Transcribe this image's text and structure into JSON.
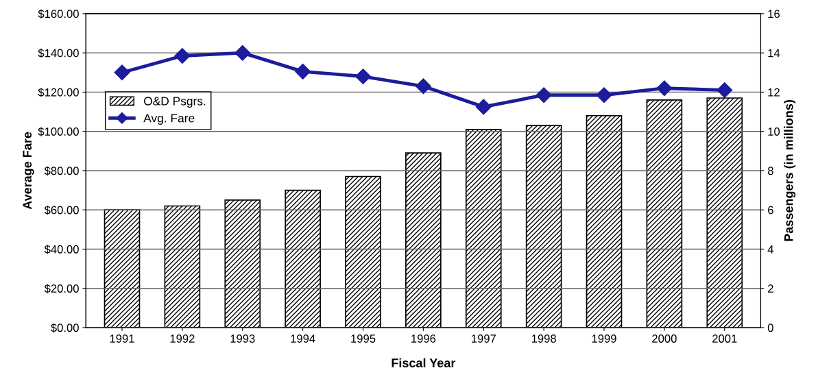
{
  "chart_data": {
    "type": "bar",
    "xlabel": "Fiscal Year",
    "ylabel": "Average Fare",
    "y2label": "Passengers (in millions)",
    "categories": [
      "1991",
      "1992",
      "1993",
      "1994",
      "1995",
      "1996",
      "1997",
      "1998",
      "1999",
      "2000",
      "2001"
    ],
    "series": [
      {
        "name": "O&D Psgrs.",
        "axis": "y2",
        "color": "#000000",
        "values": [
          6.0,
          6.2,
          6.5,
          7.0,
          7.7,
          8.9,
          10.1,
          10.3,
          10.8,
          11.6,
          11.7
        ]
      },
      {
        "name": "Avg. Fare",
        "type": "line",
        "axis": "y",
        "color": "#1c1c9c",
        "marker": "diamond",
        "values": [
          130,
          138.5,
          140,
          130.5,
          128,
          123,
          112.5,
          118.5,
          118.5,
          122,
          121
        ]
      }
    ],
    "ylim": [
      0,
      160
    ],
    "yticks": [
      {
        "value": 0,
        "label": "$0.00"
      },
      {
        "value": 20,
        "label": "$20.00"
      },
      {
        "value": 40,
        "label": "$40.00"
      },
      {
        "value": 60,
        "label": "$60.00"
      },
      {
        "value": 80,
        "label": "$80.00"
      },
      {
        "value": 100,
        "label": "$100.00"
      },
      {
        "value": 120,
        "label": "$120.00"
      },
      {
        "value": 140,
        "label": "$140.00"
      },
      {
        "value": 160,
        "label": "$160.00"
      }
    ],
    "y2lim": [
      0,
      16
    ],
    "y2ticks": [
      0,
      2,
      4,
      6,
      8,
      10,
      12,
      14,
      16
    ],
    "grid": "y",
    "legend": "top left"
  }
}
